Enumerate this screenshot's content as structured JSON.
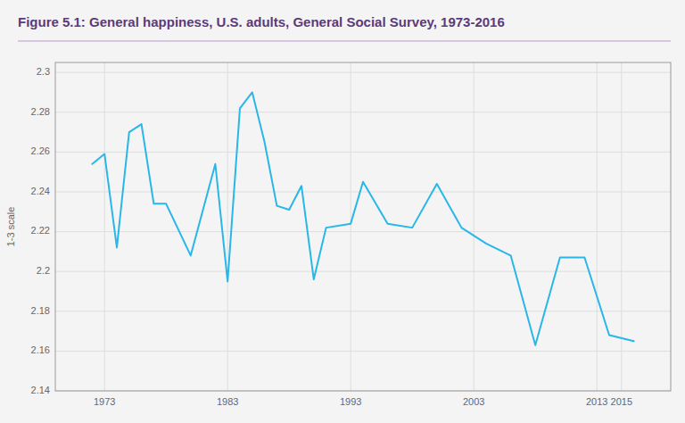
{
  "chart_data": {
    "type": "line",
    "title": "Figure 5.1: General happiness, U.S. adults, General Social Survey, 1973-2016",
    "ylabel": "1-3 scale",
    "x": [
      1972,
      1973,
      1974,
      1975,
      1976,
      1977,
      1978,
      1980,
      1982,
      1983,
      1984,
      1985,
      1986,
      1987,
      1988,
      1989,
      1990,
      1991,
      1993,
      1994,
      1996,
      1998,
      2000,
      2002,
      2004,
      2006,
      2008,
      2010,
      2012,
      2014,
      2016
    ],
    "values": [
      2.254,
      2.259,
      2.212,
      2.27,
      2.274,
      2.234,
      2.234,
      2.208,
      2.254,
      2.195,
      2.282,
      2.29,
      2.265,
      2.233,
      2.231,
      2.243,
      2.196,
      2.222,
      2.224,
      2.245,
      2.224,
      2.222,
      2.244,
      2.222,
      2.214,
      2.208,
      2.163,
      2.207,
      2.207,
      2.168,
      2.165
    ],
    "color": "#29b6e8",
    "xlim": [
      1969,
      2019
    ],
    "ylim": [
      2.14,
      2.305
    ],
    "xticks": [
      1973,
      1983,
      1993,
      2003,
      2013,
      2015
    ],
    "yticks": [
      2.14,
      2.16,
      2.18,
      2.2,
      2.22,
      2.24,
      2.26,
      2.28,
      2.3
    ],
    "grid": true
  }
}
